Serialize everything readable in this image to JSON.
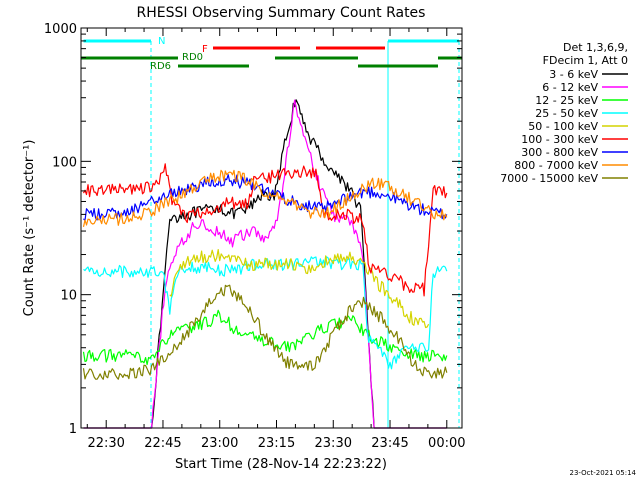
{
  "chart_data": {
    "type": "line",
    "title": "RHESSI Observing Summary Count Rates",
    "xlabel": "Start Time (28-Nov-14 22:23:22)",
    "ylabel": "Count Rate (s⁻¹ detector⁻¹)",
    "yscale": "log",
    "xlim": [
      22.389,
      24.067
    ],
    "ylim": [
      1,
      1000
    ],
    "x_ticks": [
      "22:30",
      "22:45",
      "23:00",
      "23:15",
      "23:30",
      "23:45",
      "00:00"
    ],
    "y_ticks": [
      "1",
      "10",
      "100",
      "1000"
    ],
    "legend_header": [
      "Det 1,3,6,9,",
      "FDecim 1, Att 0"
    ],
    "legend_position": "right",
    "footer": "23-Oct-2021 05:14",
    "markers": [
      {
        "label": "N",
        "color": "#00ffff"
      },
      {
        "label": "F",
        "color": "#ff0000"
      },
      {
        "label": "RD0",
        "color": "#008000"
      },
      {
        "label": "RD6",
        "color": "#008000"
      }
    ],
    "series": [
      {
        "name": "3 - 6 keV",
        "color": "#000000",
        "points": [
          [
            22.4,
            1
          ],
          [
            22.7,
            1
          ],
          [
            22.78,
            38
          ],
          [
            22.85,
            40
          ],
          [
            22.92,
            42
          ],
          [
            23.0,
            46
          ],
          [
            23.05,
            40
          ],
          [
            23.1,
            42
          ],
          [
            23.15,
            48
          ],
          [
            23.2,
            60
          ],
          [
            23.24,
            52
          ],
          [
            23.28,
            120
          ],
          [
            23.33,
            280
          ],
          [
            23.4,
            150
          ],
          [
            23.48,
            90
          ],
          [
            23.55,
            70
          ],
          [
            23.62,
            45
          ],
          [
            23.68,
            1
          ],
          [
            24.0,
            1
          ]
        ]
      },
      {
        "name": "6 - 12 keV",
        "color": "#ff00ff",
        "points": [
          [
            22.4,
            1
          ],
          [
            22.7,
            1
          ],
          [
            22.76,
            12
          ],
          [
            22.8,
            20
          ],
          [
            22.9,
            35
          ],
          [
            23.0,
            30
          ],
          [
            23.05,
            25
          ],
          [
            23.1,
            28
          ],
          [
            23.15,
            30
          ],
          [
            23.2,
            25
          ],
          [
            23.26,
            40
          ],
          [
            23.33,
            290
          ],
          [
            23.42,
            80
          ],
          [
            23.5,
            40
          ],
          [
            23.58,
            35
          ],
          [
            23.63,
            20
          ],
          [
            23.68,
            1
          ],
          [
            24.0,
            1
          ]
        ]
      },
      {
        "name": "12 - 25 keV",
        "color": "#00ff00",
        "points": [
          [
            22.4,
            3.5
          ],
          [
            22.6,
            3.5
          ],
          [
            22.7,
            3.3
          ],
          [
            22.78,
            5.0
          ],
          [
            22.85,
            5.5
          ],
          [
            22.92,
            6.0
          ],
          [
            23.0,
            7.0
          ],
          [
            23.1,
            5.0
          ],
          [
            23.2,
            4.5
          ],
          [
            23.3,
            4.0
          ],
          [
            23.4,
            5.0
          ],
          [
            23.5,
            6.0
          ],
          [
            23.58,
            6.5
          ],
          [
            23.65,
            5.0
          ],
          [
            23.75,
            4.0
          ],
          [
            23.85,
            3.5
          ],
          [
            24.0,
            3.5
          ]
        ]
      },
      {
        "name": "25 - 50 keV",
        "color": "#00ffff",
        "points": [
          [
            22.4,
            15
          ],
          [
            22.75,
            15
          ],
          [
            22.78,
            8
          ],
          [
            22.82,
            16
          ],
          [
            22.95,
            16
          ],
          [
            23.0,
            15
          ],
          [
            23.1,
            16
          ],
          [
            23.15,
            17
          ],
          [
            23.25,
            17
          ],
          [
            23.35,
            17
          ],
          [
            23.45,
            18
          ],
          [
            23.55,
            17
          ],
          [
            23.63,
            17
          ],
          [
            23.65,
            5
          ],
          [
            23.75,
            3
          ],
          [
            23.83,
            4
          ],
          [
            23.92,
            4
          ],
          [
            23.94,
            15
          ],
          [
            24.0,
            15
          ]
        ]
      },
      {
        "name": "50 - 100 keV",
        "color": "#d4d400",
        "points": [
          [
            22.78,
            10
          ],
          [
            22.82,
            16
          ],
          [
            22.9,
            19
          ],
          [
            23.0,
            20
          ],
          [
            23.1,
            17
          ],
          [
            23.2,
            17
          ],
          [
            23.3,
            17
          ],
          [
            23.4,
            16
          ],
          [
            23.48,
            18
          ],
          [
            23.56,
            19
          ],
          [
            23.62,
            18
          ],
          [
            23.7,
            12
          ],
          [
            23.78,
            9
          ],
          [
            23.83,
            7
          ],
          [
            23.88,
            6
          ],
          [
            23.92,
            6
          ]
        ]
      },
      {
        "name": "100 - 300 keV",
        "color": "#ff0000",
        "points": [
          [
            22.4,
            60
          ],
          [
            22.6,
            62
          ],
          [
            22.72,
            65
          ],
          [
            22.76,
            90
          ],
          [
            22.79,
            50
          ],
          [
            22.85,
            38
          ],
          [
            22.95,
            43
          ],
          [
            23.05,
            50
          ],
          [
            23.12,
            47
          ],
          [
            23.15,
            70
          ],
          [
            23.25,
            80
          ],
          [
            23.35,
            85
          ],
          [
            23.43,
            80
          ],
          [
            23.46,
            40
          ],
          [
            23.55,
            40
          ],
          [
            23.63,
            36
          ],
          [
            23.66,
            16
          ],
          [
            23.75,
            14
          ],
          [
            23.85,
            11
          ],
          [
            23.9,
            11
          ],
          [
            23.94,
            60
          ],
          [
            24.0,
            58
          ]
        ]
      },
      {
        "name": "300 - 800 keV",
        "color": "#0000ff",
        "points": [
          [
            22.4,
            40
          ],
          [
            22.5,
            40
          ],
          [
            22.6,
            43
          ],
          [
            22.7,
            50
          ],
          [
            22.8,
            58
          ],
          [
            22.9,
            66
          ],
          [
            22.98,
            72
          ],
          [
            23.05,
            73
          ],
          [
            23.12,
            68
          ],
          [
            23.2,
            60
          ],
          [
            23.3,
            52
          ],
          [
            23.4,
            46
          ],
          [
            23.45,
            44
          ],
          [
            23.5,
            47
          ],
          [
            23.55,
            52
          ],
          [
            23.6,
            57
          ],
          [
            23.65,
            60
          ],
          [
            23.7,
            58
          ],
          [
            23.78,
            52
          ],
          [
            23.85,
            46
          ],
          [
            23.92,
            42
          ],
          [
            24.0,
            40
          ]
        ]
      },
      {
        "name": "800 - 7000 keV",
        "color": "#ff8c00",
        "points": [
          [
            22.4,
            36
          ],
          [
            22.5,
            36
          ],
          [
            22.6,
            38
          ],
          [
            22.7,
            43
          ],
          [
            22.8,
            52
          ],
          [
            22.9,
            65
          ],
          [
            22.98,
            77
          ],
          [
            23.05,
            80
          ],
          [
            23.12,
            72
          ],
          [
            23.2,
            60
          ],
          [
            23.3,
            49
          ],
          [
            23.4,
            42
          ],
          [
            23.45,
            40
          ],
          [
            23.5,
            44
          ],
          [
            23.55,
            50
          ],
          [
            23.62,
            60
          ],
          [
            23.68,
            70
          ],
          [
            23.75,
            65
          ],
          [
            23.82,
            55
          ],
          [
            23.9,
            45
          ],
          [
            24.0,
            38
          ]
        ]
      },
      {
        "name": "7000 - 15000 keV",
        "color": "#808000",
        "points": [
          [
            22.4,
            2.6
          ],
          [
            22.6,
            2.6
          ],
          [
            22.7,
            2.8
          ],
          [
            22.78,
            3.5
          ],
          [
            22.85,
            5.0
          ],
          [
            22.92,
            7.5
          ],
          [
            23.0,
            11
          ],
          [
            23.05,
            11
          ],
          [
            23.12,
            8
          ],
          [
            23.2,
            5
          ],
          [
            23.28,
            3.2
          ],
          [
            23.35,
            2.8
          ],
          [
            23.42,
            3.0
          ],
          [
            23.5,
            5.0
          ],
          [
            23.58,
            8.0
          ],
          [
            23.64,
            9.0
          ],
          [
            23.7,
            7.0
          ],
          [
            23.78,
            5.0
          ],
          [
            23.85,
            3.0
          ],
          [
            23.92,
            2.6
          ],
          [
            24.0,
            2.6
          ]
        ]
      }
    ]
  }
}
